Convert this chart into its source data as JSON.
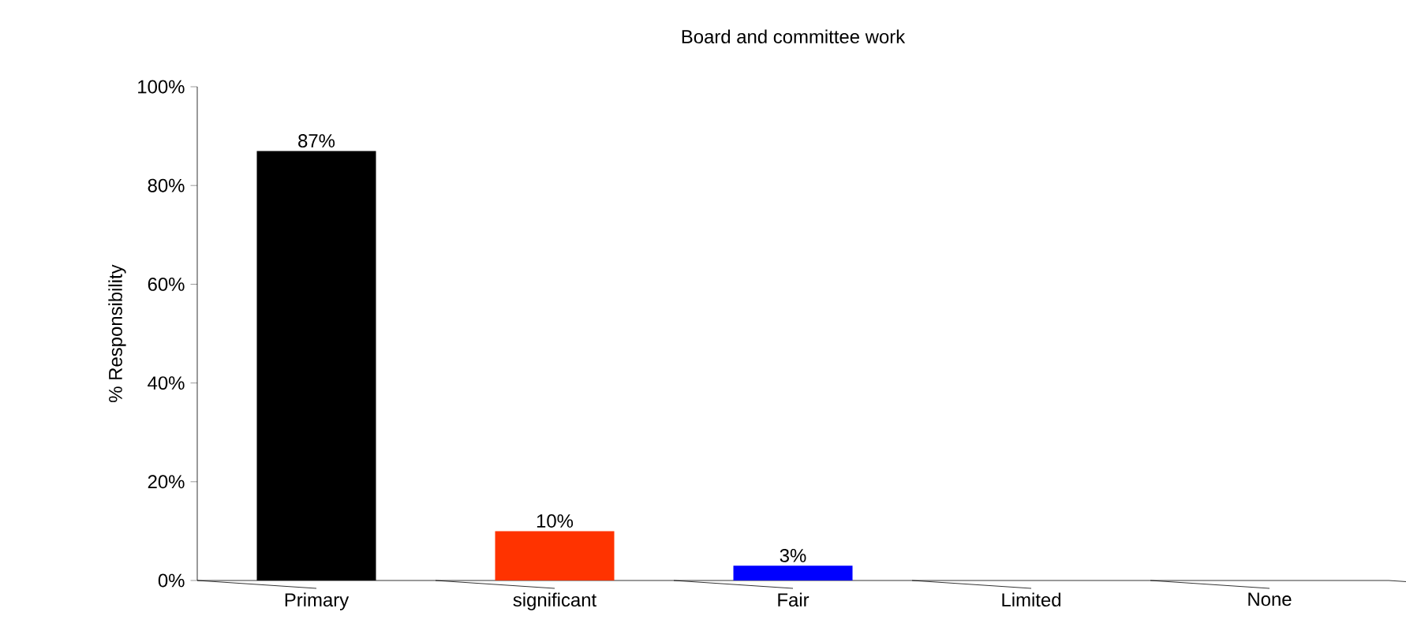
{
  "chart_data": {
    "type": "bar",
    "title": "Board and committee work",
    "ylabel": "% Responsibility",
    "categories": [
      "Primary",
      "significant",
      "Fair",
      "Limited",
      "None"
    ],
    "values": [
      87,
      10,
      3,
      0,
      0
    ],
    "colors": [
      "#000000",
      "#ff3300",
      "#0000ff",
      "#00a000",
      "#808080"
    ],
    "value_labels": [
      "87%",
      "10%",
      "3%",
      null,
      null
    ],
    "ylim": [
      0,
      100
    ],
    "yticks": [
      {
        "value": 0,
        "label": "0%"
      },
      {
        "value": 20,
        "label": "20%"
      },
      {
        "value": 40,
        "label": "40%"
      },
      {
        "value": 60,
        "label": "60%"
      },
      {
        "value": 80,
        "label": "80%"
      },
      {
        "value": 100,
        "label": "100%"
      }
    ],
    "grid": false
  }
}
